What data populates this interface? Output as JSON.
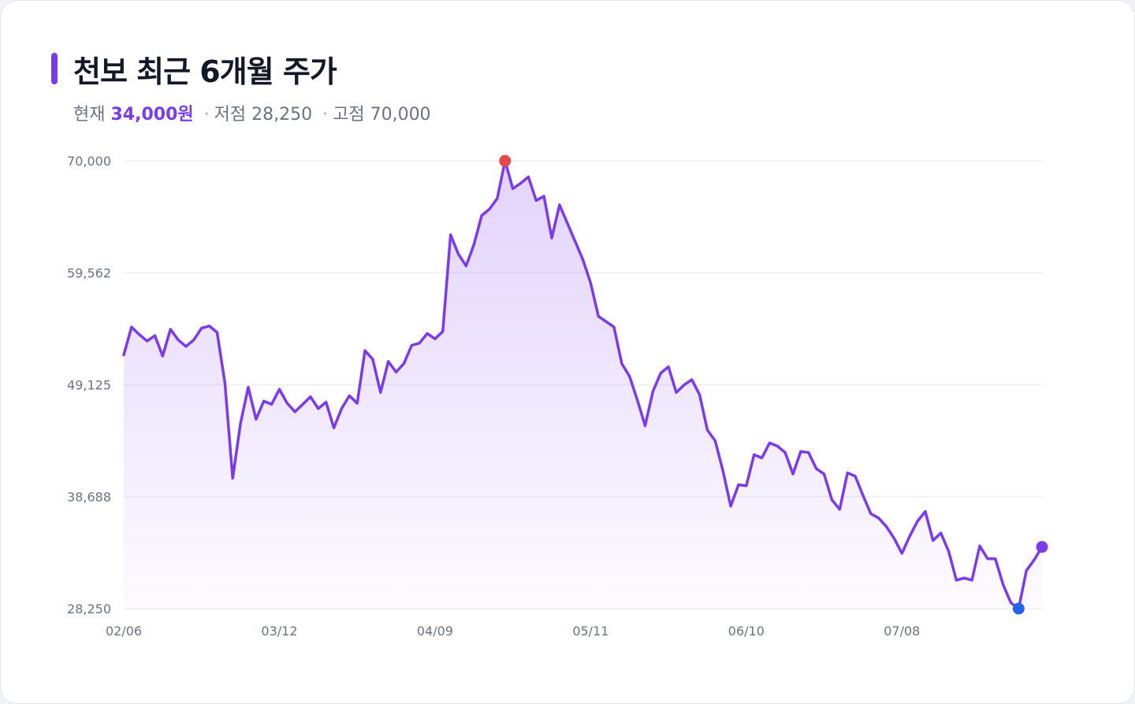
{
  "header": {
    "title": "천보 최근 6개월 주가",
    "current_label": "현재",
    "current_value": "34,000원",
    "low_label": "저점",
    "low_value": "28,250",
    "high_label": "고점",
    "high_value": "70,000",
    "separator": "·"
  },
  "colors": {
    "accent": "#7c3aed",
    "line": "#7c3aed",
    "high_marker": "#e5484d",
    "low_marker": "#2563eb",
    "grid": "#e5e7eb"
  },
  "chart_data": {
    "type": "area",
    "title": "천보 최근 6개월 주가",
    "ylim": [
      28250,
      70000
    ],
    "y_ticks": [
      "70,000",
      "59,562",
      "49,125",
      "38,688",
      "28,250"
    ],
    "y_tick_values": [
      70000,
      59562,
      49125,
      38688,
      28250
    ],
    "x_tick_labels": [
      "02/06",
      "03/12",
      "04/09",
      "05/11",
      "06/10",
      "07/08"
    ],
    "x_tick_indices": [
      0,
      20,
      40,
      60,
      80,
      100
    ],
    "grid": true,
    "series": [
      {
        "values": [
          51900,
          54500,
          53800,
          53200,
          53700,
          51800,
          54300,
          53300,
          52700,
          53300,
          54400,
          54600,
          54000,
          49300,
          40400,
          45500,
          48900,
          45900,
          47600,
          47300,
          48700,
          47400,
          46600,
          47300,
          48000,
          46900,
          47500,
          45100,
          46900,
          48100,
          47400,
          52300,
          51500,
          48400,
          51300,
          50300,
          51100,
          52800,
          53000,
          53900,
          53400,
          54100,
          63100,
          61300,
          60200,
          62200,
          64900,
          65500,
          66500,
          70000,
          67400,
          67900,
          68500,
          66300,
          66700,
          62800,
          65900,
          64200,
          62500,
          60800,
          58600,
          55500,
          55000,
          54500,
          51100,
          49900,
          47700,
          45300,
          48500,
          50200,
          50800,
          48400,
          49100,
          49600,
          48200,
          44900,
          43900,
          41100,
          37800,
          39800,
          39700,
          42600,
          42300,
          43700,
          43400,
          42800,
          40800,
          42900,
          42800,
          41300,
          40800,
          38400,
          37500,
          40900,
          40600,
          38800,
          37100,
          36700,
          35900,
          34800,
          33400,
          35000,
          36400,
          37300,
          34600,
          35300,
          33600,
          30900,
          31100,
          30900,
          34100,
          32900,
          32900,
          30500,
          28800,
          28250,
          31800,
          32800,
          34000
        ]
      }
    ],
    "high": {
      "index": 49,
      "value": 70000
    },
    "low": {
      "index": 115,
      "value": 28250
    },
    "last": {
      "index": 118,
      "value": 34000
    }
  }
}
